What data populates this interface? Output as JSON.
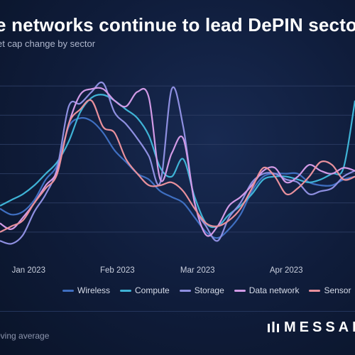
{
  "title": "e networks continue to lead DePIN secto",
  "subtitle": "et cap change by sector",
  "footnote": "oving average",
  "brand": {
    "name": "MESSAR"
  },
  "colors": {
    "background": "#0d1730",
    "gridline": "#2a3a60",
    "wireless": "#3f6fc1",
    "compute": "#3fb3d6",
    "storage": "#8e8fe0",
    "data_network": "#d19ae6",
    "sensor": "#e8909c"
  },
  "chart_data": {
    "type": "line",
    "title": "",
    "xlabel": "",
    "ylabel": "",
    "x_tick_labels": [
      "Jan 2023",
      "Feb 2023",
      "Mar 2023",
      "Apr 2023"
    ],
    "x": [
      "2022-12-22",
      "2022-12-26",
      "2022-12-30",
      "2023-01-03",
      "2023-01-07",
      "2023-01-11",
      "2023-01-15",
      "2023-01-19",
      "2023-01-23",
      "2023-01-27",
      "2023-01-31",
      "2023-02-04",
      "2023-02-08",
      "2023-02-12",
      "2023-02-16",
      "2023-02-20",
      "2023-02-24",
      "2023-02-28",
      "2023-03-04",
      "2023-03-08",
      "2023-03-12",
      "2023-03-16",
      "2023-03-20",
      "2023-03-24",
      "2023-03-28",
      "2023-04-01",
      "2023-04-05",
      "2023-04-09",
      "2023-04-13",
      "2023-04-17",
      "2023-04-21",
      "2023-04-25"
    ],
    "ylim": [
      0,
      7
    ],
    "grid": true,
    "legend_position": "bottom",
    "series": [
      {
        "name": "Wireless",
        "color_key": "wireless",
        "values": [
          1.8,
          1.6,
          1.7,
          2.1,
          2.8,
          3.3,
          4.6,
          4.9,
          4.8,
          4.4,
          3.8,
          3.4,
          3.0,
          2.8,
          2.4,
          2.2,
          2.0,
          1.5,
          1.0,
          0.8,
          1.1,
          1.6,
          2.4,
          2.9,
          3.0,
          3.0,
          3.0,
          2.7,
          2.6,
          2.6,
          2.8,
          2.9
        ]
      },
      {
        "name": "Compute",
        "color_key": "compute",
        "values": [
          1.9,
          2.1,
          2.3,
          2.6,
          3.0,
          3.4,
          4.1,
          5.1,
          5.6,
          5.7,
          5.5,
          5.2,
          4.9,
          4.3,
          3.2,
          2.9,
          3.5,
          2.2,
          1.3,
          1.2,
          1.6,
          1.9,
          2.3,
          2.8,
          2.9,
          2.9,
          2.8,
          2.7,
          2.8,
          3.0,
          3.2,
          5.5
        ]
      },
      {
        "name": "Storage",
        "color_key": "storage",
        "values": [
          0.7,
          0.6,
          0.9,
          1.7,
          2.3,
          3.2,
          5.3,
          5.4,
          5.8,
          6.1,
          5.1,
          4.7,
          4.2,
          3.6,
          2.7,
          5.9,
          4.6,
          2.0,
          1.2,
          0.7,
          1.5,
          2.0,
          2.7,
          3.0,
          3.0,
          2.8,
          2.7,
          2.3,
          2.4,
          2.5,
          2.9,
          3.1
        ]
      },
      {
        "name": "Data network",
        "color_key": "data_network",
        "values": [
          1.3,
          1.1,
          1.5,
          2.0,
          2.6,
          3.1,
          4.7,
          5.7,
          5.9,
          5.9,
          5.5,
          5.3,
          5.8,
          5.6,
          2.8,
          3.7,
          4.2,
          2.0,
          0.9,
          1.2,
          1.9,
          2.2,
          2.6,
          3.1,
          3.2,
          2.7,
          2.9,
          3.3,
          3.1,
          3.0,
          3.2,
          3.1
        ]
      },
      {
        "name": "Sensor",
        "color_key": "sensor",
        "values": [
          1.0,
          1.2,
          1.4,
          2.0,
          2.5,
          3.0,
          4.7,
          5.2,
          5.5,
          4.6,
          4.4,
          3.5,
          3.0,
          2.6,
          2.6,
          2.7,
          2.4,
          1.8,
          1.3,
          1.2,
          1.4,
          1.8,
          2.5,
          3.2,
          2.9,
          2.3,
          2.5,
          2.9,
          3.4,
          3.3,
          2.8,
          2.9
        ]
      }
    ]
  }
}
